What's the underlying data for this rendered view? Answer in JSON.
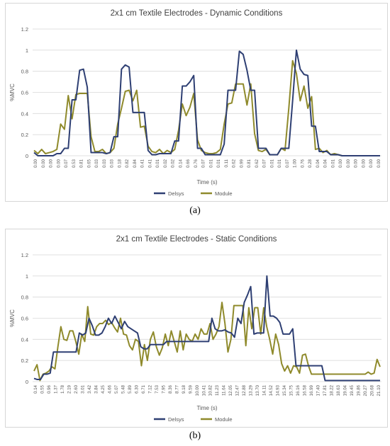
{
  "charts": [
    {
      "caption": "(a)",
      "chart_data": {
        "type": "line",
        "title": "2x1 cm Textile Electrodes - Dynamic Conditions",
        "xlabel": "Time (s)",
        "ylabel": "%MVC",
        "ylim": [
          0,
          1.2
        ],
        "yticks": [
          0,
          0.2,
          0.4,
          0.6,
          0.8,
          1,
          1.2
        ],
        "grid": true,
        "legend": "bottom",
        "x_tick_labels": [
          "0.00",
          "0.00",
          "0.00",
          "0.00",
          "0.07",
          "0.53",
          "0.81",
          "0.65",
          "0.03",
          "0.03",
          "0.03",
          "0.18",
          "0.82",
          "0.84",
          "0.41",
          "0.41",
          "0.01",
          "0.02",
          "0.02",
          "0.14",
          "0.66",
          "0.76",
          "0.07",
          "0.01",
          "0.01",
          "0.11",
          "0.62",
          "0.99",
          "0.81",
          "0.62",
          "0.07",
          "0.01",
          "0.01",
          "0.07",
          "1.00",
          "0.76",
          "0.28",
          "0.04",
          "0.04",
          "0.01",
          "0.00",
          "0.00",
          "0.00",
          "0.00",
          "0.00",
          "0.00"
        ],
        "series": [
          {
            "name": "Delsys",
            "color": "#2e3f73",
            "values": [
              0.03,
              0.0,
              0.0,
              0.0,
              0.0,
              0.0,
              0.02,
              0.02,
              0.07,
              0.07,
              0.53,
              0.53,
              0.81,
              0.82,
              0.65,
              0.03,
              0.03,
              0.03,
              0.03,
              0.02,
              0.03,
              0.18,
              0.18,
              0.82,
              0.86,
              0.84,
              0.41,
              0.41,
              0.41,
              0.41,
              0.05,
              0.01,
              0.01,
              0.02,
              0.02,
              0.02,
              0.02,
              0.14,
              0.14,
              0.66,
              0.66,
              0.7,
              0.76,
              0.07,
              0.07,
              0.01,
              0.01,
              0.01,
              0.01,
              0.01,
              0.11,
              0.62,
              0.62,
              0.62,
              0.99,
              0.96,
              0.81,
              0.62,
              0.62,
              0.07,
              0.07,
              0.07,
              0.01,
              0.01,
              0.01,
              0.07,
              0.07,
              0.07,
              0.52,
              1.0,
              0.82,
              0.77,
              0.76,
              0.28,
              0.28,
              0.04,
              0.04,
              0.04,
              0.01,
              0.01,
              0.01,
              0.0,
              0.0,
              0.0,
              0.0,
              0.0,
              0.0,
              0.0,
              0.0,
              0.0,
              0.0,
              0.0
            ]
          },
          {
            "name": "Module",
            "color": "#8f8a2b",
            "values": [
              0.05,
              0.02,
              0.06,
              0.02,
              0.03,
              0.04,
              0.06,
              0.3,
              0.25,
              0.57,
              0.35,
              0.58,
              0.59,
              0.59,
              0.59,
              0.18,
              0.04,
              0.04,
              0.06,
              0.02,
              0.03,
              0.07,
              0.3,
              0.45,
              0.61,
              0.62,
              0.52,
              0.62,
              0.27,
              0.28,
              0.09,
              0.04,
              0.03,
              0.06,
              0.02,
              0.05,
              0.03,
              0.06,
              0.24,
              0.49,
              0.38,
              0.46,
              0.59,
              0.15,
              0.05,
              0.03,
              0.02,
              0.02,
              0.03,
              0.06,
              0.3,
              0.49,
              0.5,
              0.68,
              0.68,
              0.68,
              0.48,
              0.68,
              0.21,
              0.05,
              0.04,
              0.06,
              0.01,
              0.01,
              0.01,
              0.07,
              0.05,
              0.45,
              0.9,
              0.78,
              0.52,
              0.66,
              0.45,
              0.56,
              0.06,
              0.07,
              0.03,
              0.05,
              0.01,
              0.02,
              0.01,
              0.0,
              0.0,
              0.0,
              0.0,
              0.0,
              0.0,
              0.0,
              0.0,
              0.0,
              0.0,
              0.0
            ]
          }
        ]
      }
    },
    {
      "caption": "(b)",
      "chart_data": {
        "type": "line",
        "title": "2x1 cm Textile Electrodes - Static Conditions",
        "xlabel": "Time (s)",
        "ylabel": "%MVC",
        "ylim": [
          0,
          1.2
        ],
        "yticks": [
          0,
          0.2,
          0.4,
          0.6,
          0.8,
          1,
          1.2
        ],
        "grid": true,
        "legend": "bottom",
        "x_tick_labels": [
          "0.14",
          "0.55",
          "0.96",
          "1.37",
          "1.78",
          "2.19",
          "2.60",
          "3.01",
          "3.42",
          "3.84",
          "4.25",
          "4.66",
          "5.07",
          "5.48",
          "5.89",
          "6.30",
          "6.71",
          "7.12",
          "7.53",
          "7.95",
          "8.36",
          "8.77",
          "9.18",
          "9.59",
          "10.00",
          "10.41",
          "10.82",
          "11.23",
          "11.64",
          "12.05",
          "12.47",
          "12.88",
          "13.29",
          "13.70",
          "14.11",
          "14.52",
          "14.93",
          "15.34",
          "15.75",
          "16.16",
          "16.58",
          "16.99",
          "17.40",
          "17.81",
          "18.22",
          "18.63",
          "19.04",
          "19.45",
          "19.86",
          "20.27",
          "20.68",
          "21.10"
        ],
        "series": [
          {
            "name": "Delsys",
            "color": "#2e3f73",
            "values": [
              0.03,
              0.02,
              0.02,
              0.07,
              0.07,
              0.08,
              0.28,
              0.28,
              0.28,
              0.28,
              0.28,
              0.28,
              0.28,
              0.28,
              0.46,
              0.44,
              0.46,
              0.6,
              0.53,
              0.44,
              0.44,
              0.46,
              0.52,
              0.6,
              0.55,
              0.62,
              0.56,
              0.5,
              0.57,
              0.52,
              0.5,
              0.48,
              0.46,
              0.33,
              0.31,
              0.31,
              0.35,
              0.35,
              0.35,
              0.35,
              0.35,
              0.38,
              0.38,
              0.38,
              0.38,
              0.38,
              0.38,
              0.38,
              0.38,
              0.38,
              0.38,
              0.38,
              0.38,
              0.38,
              0.38,
              0.6,
              0.5,
              0.48,
              0.48,
              0.49,
              0.47,
              0.46,
              0.42,
              0.6,
              0.55,
              0.75,
              0.82,
              0.9,
              0.45,
              0.46,
              0.46,
              0.46,
              1.0,
              0.62,
              0.62,
              0.6,
              0.56,
              0.45,
              0.45,
              0.45,
              0.5,
              0.15,
              0.15,
              0.15,
              0.15,
              0.15,
              0.15,
              0.15,
              0.15,
              0.15,
              0.01,
              0.01,
              0.01,
              0.01,
              0.01,
              0.01,
              0.01,
              0.01,
              0.01,
              0.01,
              0.01,
              0.01,
              0.01,
              0.01,
              0.01,
              0.01,
              0.01,
              0.01
            ]
          },
          {
            "name": "Module",
            "color": "#8f8a2b",
            "values": [
              0.1,
              0.16,
              0.01,
              0.07,
              0.08,
              0.1,
              0.14,
              0.12,
              0.33,
              0.52,
              0.4,
              0.39,
              0.48,
              0.48,
              0.38,
              0.26,
              0.45,
              0.38,
              0.71,
              0.45,
              0.44,
              0.52,
              0.55,
              0.55,
              0.58,
              0.54,
              0.56,
              0.51,
              0.47,
              0.6,
              0.45,
              0.44,
              0.34,
              0.3,
              0.4,
              0.38,
              0.15,
              0.35,
              0.2,
              0.4,
              0.47,
              0.33,
              0.25,
              0.32,
              0.45,
              0.34,
              0.48,
              0.38,
              0.28,
              0.48,
              0.3,
              0.45,
              0.4,
              0.38,
              0.45,
              0.4,
              0.5,
              0.45,
              0.45,
              0.55,
              0.4,
              0.45,
              0.52,
              0.75,
              0.55,
              0.28,
              0.4,
              0.72,
              0.72,
              0.72,
              0.72,
              0.34,
              0.7,
              0.5,
              0.7,
              0.7,
              0.45,
              0.7,
              0.52,
              0.4,
              0.26,
              0.45,
              0.35,
              0.17,
              0.1,
              0.15,
              0.08,
              0.15,
              0.14,
              0.08,
              0.25,
              0.26,
              0.15,
              0.07,
              0.07,
              0.07,
              0.07,
              0.07,
              0.07,
              0.07,
              0.07,
              0.07,
              0.07,
              0.07,
              0.07,
              0.07,
              0.07,
              0.07,
              0.07,
              0.07,
              0.07,
              0.07,
              0.09,
              0.07,
              0.08,
              0.21,
              0.14
            ]
          }
        ]
      }
    }
  ]
}
